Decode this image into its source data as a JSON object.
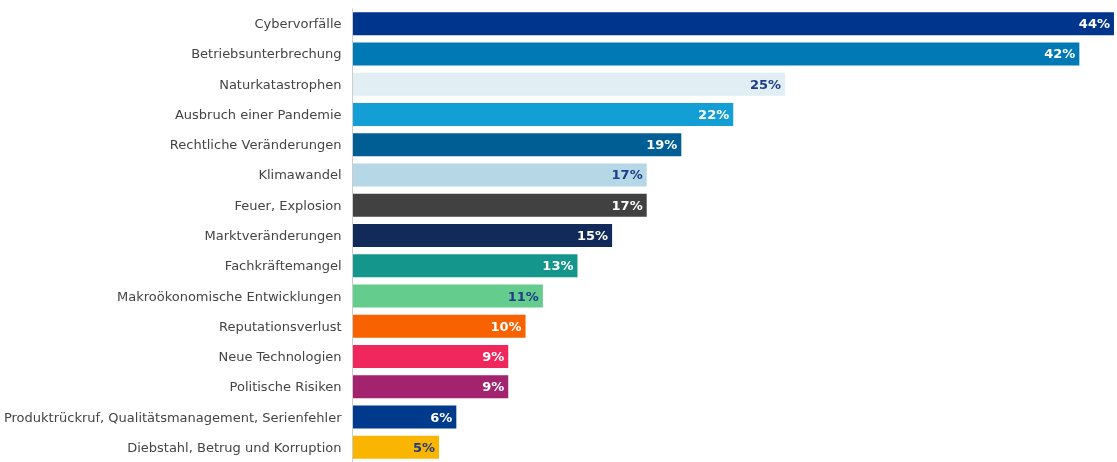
{
  "chart_data": {
    "type": "bar",
    "orientation": "horizontal",
    "categories": [
      "Cybervorfälle",
      "Betriebsunterbrechung",
      "Naturkatastrophen",
      "Ausbruch einer Pandemie",
      "Rechtliche Veränderungen",
      "Klimawandel",
      "Feuer, Explosion",
      "Marktveränderungen",
      "Fachkräftemangel",
      "Makroökonomische Entwicklungen",
      "Reputationsverlust",
      "Neue Technologien",
      "Politische Risiken",
      "Produktrückruf, Qualitätsmanagement, Serienfehler",
      "Diebstahl, Betrug und Korruption"
    ],
    "values": [
      44,
      42,
      25,
      22,
      19,
      17,
      17,
      15,
      13,
      11,
      10,
      9,
      9,
      6,
      5
    ],
    "value_labels": [
      "44%",
      "42%",
      "25%",
      "22%",
      "19%",
      "17%",
      "17%",
      "15%",
      "13%",
      "11%",
      "10%",
      "9%",
      "9%",
      "6%",
      "5%"
    ],
    "colors": [
      "#00358e",
      "#0079b5",
      "#e1eef3",
      "#139ed5",
      "#005e95",
      "#b6d8e6",
      "#414141",
      "#112a5a",
      "#14968c",
      "#64cc8c",
      "#f86200",
      "#f0275c",
      "#a3236e",
      "#003a8c",
      "#fab500"
    ]
  }
}
